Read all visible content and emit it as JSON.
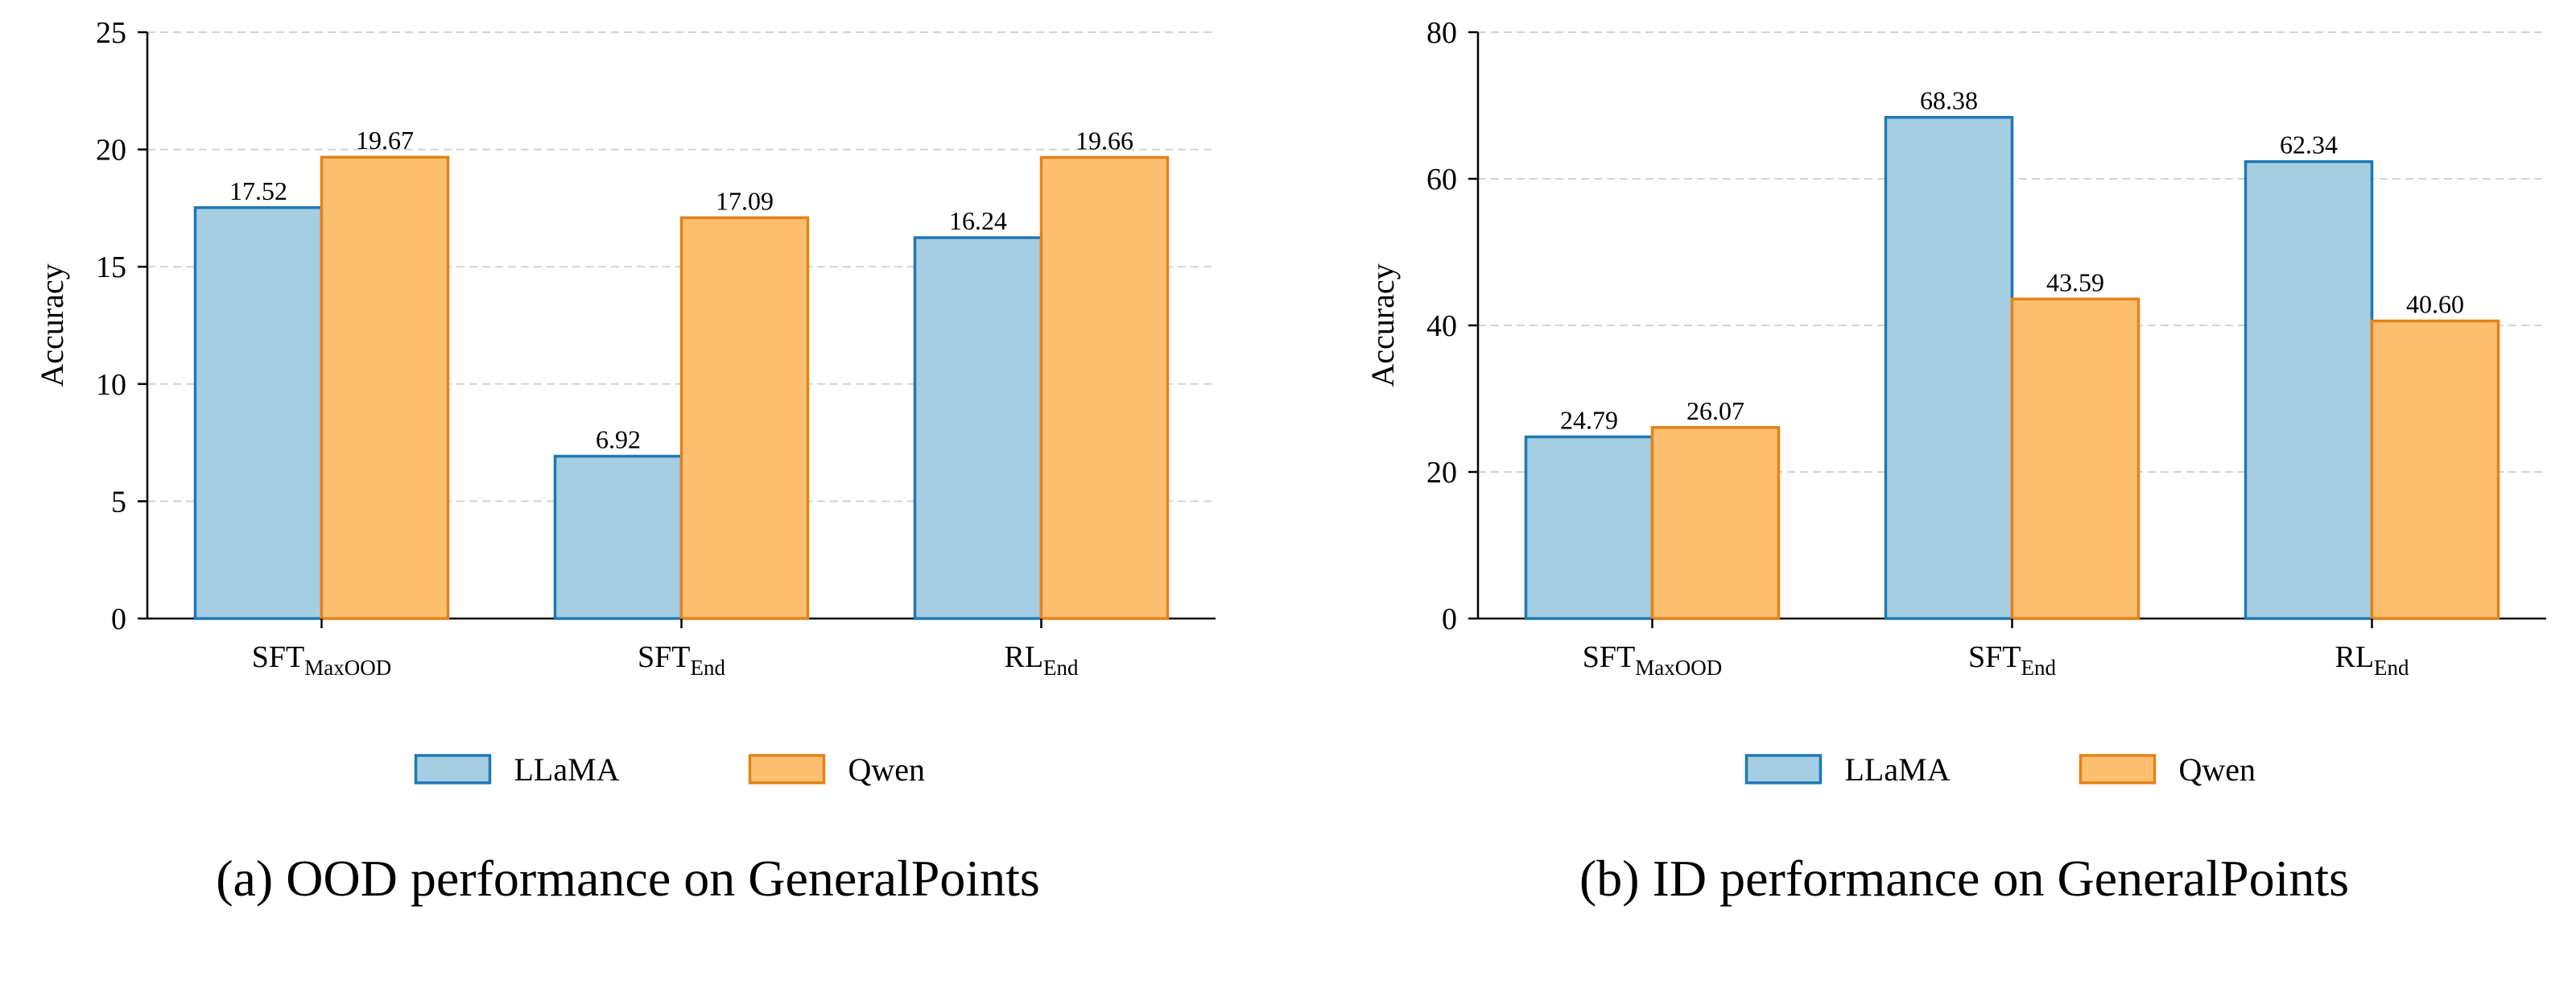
{
  "chart_data": [
    {
      "type": "bar",
      "caption": "(a) OOD performance on GeneralPoints",
      "ylabel": "Accuracy",
      "ylim": [
        0,
        25
      ],
      "yticks": [
        "0",
        "5",
        "10",
        "15",
        "20",
        "25"
      ],
      "grid": true,
      "categories": [
        {
          "base": "SFT",
          "sub": "MaxOOD"
        },
        {
          "base": "SFT",
          "sub": "End"
        },
        {
          "base": "RL",
          "sub": "End"
        }
      ],
      "series": [
        {
          "name": "LLaMA",
          "values": [
            17.52,
            6.92,
            16.24
          ],
          "labels": [
            "17.52",
            "6.92",
            "16.24"
          ]
        },
        {
          "name": "Qwen",
          "values": [
            19.67,
            17.09,
            19.66
          ],
          "labels": [
            "19.67",
            "17.09",
            "19.66"
          ]
        }
      ],
      "legend": "bottom-center"
    },
    {
      "type": "bar",
      "caption": "(b) ID performance on GeneralPoints",
      "ylabel": "Accuracy",
      "ylim": [
        0,
        80
      ],
      "yticks": [
        "0",
        "20",
        "40",
        "60",
        "80"
      ],
      "grid": true,
      "categories": [
        {
          "base": "SFT",
          "sub": "MaxOOD"
        },
        {
          "base": "SFT",
          "sub": "End"
        },
        {
          "base": "RL",
          "sub": "End"
        }
      ],
      "series": [
        {
          "name": "LLaMA",
          "values": [
            24.79,
            68.38,
            62.34
          ],
          "labels": [
            "24.79",
            "68.38",
            "62.34"
          ]
        },
        {
          "name": "Qwen",
          "values": [
            26.07,
            43.59,
            40.6
          ],
          "labels": [
            "26.07",
            "43.59",
            "40.60"
          ]
        }
      ],
      "legend": "bottom-center"
    }
  ],
  "colors": {
    "llama_fill": "#a6cee3",
    "llama_edge": "#1f78b4",
    "qwen_fill": "#fdbf6f",
    "qwen_edge": "#e3821a",
    "grid": "#d3d3d3",
    "axis": "#000000"
  }
}
